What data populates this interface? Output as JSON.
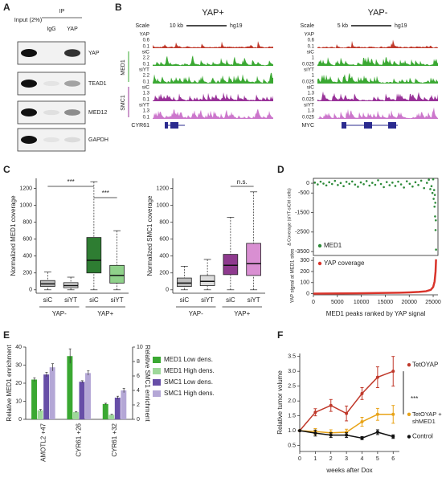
{
  "panel_labels": [
    "A",
    "B",
    "C",
    "D",
    "E",
    "F"
  ],
  "panel_a": {
    "lanes": [
      "Input (2%)",
      "IgG",
      "YAP"
    ],
    "ip_label": "IP",
    "rows": [
      "YAP",
      "TEAD1",
      "MED12",
      "GAPDH"
    ]
  },
  "panel_b": {
    "views": [
      {
        "title": "YAP+",
        "scale_label": "Scale",
        "scale": "10 kb",
        "genome": "hg19",
        "gene": "CYR61",
        "groups": [
          {
            "name": "MED1",
            "color": "#3aa832"
          },
          {
            "name": "SMC1",
            "color": "#993399"
          }
        ],
        "tracks": [
          {
            "name": "YAP",
            "max": 0.6,
            "min": 0.1,
            "color": "#c0392b"
          },
          {
            "name": "siC",
            "max": 2.2,
            "min": 0.1,
            "color": "#3aa832"
          },
          {
            "name": "siYT",
            "max": 2.2,
            "min": 0.1,
            "color": "#3aa832"
          },
          {
            "name": "siC",
            "max": 1.3,
            "min": 0.1,
            "color": "#993399"
          },
          {
            "name": "siYT",
            "max": 1.3,
            "min": 0.1,
            "color": "#cc77cc"
          }
        ]
      },
      {
        "title": "YAP-",
        "scale_label": "Scale",
        "scale": "5 kb",
        "genome": "hg19",
        "gene": "MYC",
        "tracks": [
          {
            "name": "YAP",
            "max": 0.6,
            "min": 0.1,
            "color": "#c0392b"
          },
          {
            "name": "siC",
            "max": 1,
            "min": 0.025,
            "color": "#3aa832"
          },
          {
            "name": "siYT",
            "max": 1,
            "min": 0.025,
            "color": "#3aa832"
          },
          {
            "name": "siC",
            "max": 1.3,
            "min": 0.025,
            "color": "#993399"
          },
          {
            "name": "siYT",
            "max": 1.3,
            "min": 0.025,
            "color": "#cc77cc"
          }
        ]
      }
    ]
  },
  "chart_data": [
    {
      "type": "box",
      "ylabel": "Normalized MED1 coverage",
      "categories": [
        "siC",
        "siYT",
        "siC",
        "siYT"
      ],
      "groups": [
        "YAP-",
        "YAP+"
      ],
      "boxes": [
        {
          "whislo": 0,
          "q1": 40,
          "med": 70,
          "q3": 110,
          "whishi": 210
        },
        {
          "whislo": 0,
          "q1": 25,
          "med": 50,
          "q3": 85,
          "whishi": 150
        },
        {
          "whislo": 0,
          "q1": 200,
          "med": 350,
          "q3": 620,
          "whishi": 1280
        },
        {
          "whislo": 0,
          "q1": 80,
          "med": 170,
          "q3": 290,
          "whishi": 700
        }
      ],
      "colors": [
        "#bdbdbd",
        "#d6d6d6",
        "#2e7d32",
        "#8fd18a"
      ],
      "ylim": [
        -40,
        1320
      ],
      "yticks": [
        0,
        200,
        400,
        600,
        800,
        1000,
        1200
      ],
      "annotations": [
        "***",
        "***"
      ]
    },
    {
      "type": "box",
      "ylabel": "Normalized SMC1 coverage",
      "categories": [
        "siC",
        "siYT",
        "siC",
        "siYT"
      ],
      "groups": [
        "YAP-",
        "YAP+"
      ],
      "boxes": [
        {
          "whislo": 0,
          "q1": 40,
          "med": 80,
          "q3": 140,
          "whishi": 280
        },
        {
          "whislo": 0,
          "q1": 50,
          "med": 100,
          "q3": 170,
          "whishi": 360
        },
        {
          "whislo": 0,
          "q1": 180,
          "med": 290,
          "q3": 420,
          "whishi": 860
        },
        {
          "whislo": 0,
          "q1": 170,
          "med": 310,
          "q3": 550,
          "whishi": 1160
        }
      ],
      "colors": [
        "#bdbdbd",
        "#dcdcdc",
        "#8e3a8e",
        "#d98fd2"
      ],
      "ylim": [
        -40,
        1320
      ],
      "yticks": [
        0,
        200,
        400,
        600,
        800,
        1000,
        1200
      ],
      "annotations": [
        "n.s."
      ]
    },
    {
      "type": "scatter",
      "ylabel": "Δ Coverage (siYT-siCtrl cells)",
      "legend": "lower left",
      "series": [
        {
          "name": "MED1",
          "color": "#2e8b3a",
          "x": [
            300,
            900,
            1500,
            2100,
            2700,
            3300,
            3900,
            4500,
            5100,
            5700,
            6300,
            6900,
            7500,
            8100,
            8700,
            9300,
            9900,
            10500,
            11100,
            11700,
            12300,
            12900,
            13500,
            14100,
            14700,
            15300,
            15900,
            16500,
            17100,
            17700,
            18300,
            18900,
            19500,
            20100,
            20700,
            21300,
            21900,
            22500,
            23100,
            23700,
            24100,
            24400,
            24650,
            24850,
            25000,
            25100,
            25200,
            25280,
            25350,
            25400,
            25450,
            25500,
            25550,
            25600
          ],
          "values": [
            30,
            -60,
            80,
            -20,
            -110,
            50,
            -40,
            120,
            -90,
            10,
            -150,
            70,
            -30,
            90,
            -70,
            -180,
            40,
            -50,
            110,
            -120,
            20,
            -80,
            150,
            -40,
            -200,
            60,
            -100,
            30,
            -140,
            80,
            -60,
            -220,
            100,
            -30,
            -170,
            50,
            -90,
            130,
            -250,
            20,
            180,
            -300,
            -150,
            -500,
            200,
            -800,
            -350,
            -1200,
            -600,
            -1700,
            -1000,
            -2400,
            -1900,
            -3400
          ]
        }
      ],
      "xlim": [
        0,
        26000
      ],
      "ylim": [
        -3700,
        250
      ],
      "yticks": [
        0,
        -500,
        -1500,
        -2500,
        -3500
      ]
    },
    {
      "type": "line",
      "ylabel": "YAP signal at MED1 sites",
      "xlabel": "MED1 peaks ranked by YAP signal",
      "legend": "upper left",
      "series": [
        {
          "name": "YAP coverage",
          "color": "#d9342b",
          "x": [
            0,
            3000,
            6000,
            9000,
            12000,
            15000,
            18000,
            20000,
            22000,
            23500,
            24500,
            25000,
            25300,
            25500,
            25600
          ],
          "values": [
            1,
            2,
            3,
            4,
            5,
            7,
            9,
            12,
            16,
            22,
            35,
            60,
            110,
            200,
            310
          ]
        }
      ],
      "xlim": [
        0,
        26000
      ],
      "ylim": [
        -10,
        330
      ],
      "xticks": [
        0,
        5000,
        10000,
        15000,
        20000,
        25000
      ],
      "yticks": [
        0,
        100,
        200,
        300
      ]
    },
    {
      "type": "bar",
      "ylabel": "Relative MED1 enrichment",
      "y2label": "Relative SMC1 enrichment",
      "legend": "right",
      "categories": [
        "AMOTL2 +47",
        "CYR61 +26",
        "CYR61 +32"
      ],
      "series": [
        {
          "name": "MED1 Low dens.",
          "color": "#3aa832",
          "values": [
            22,
            35,
            8.5
          ],
          "errors": [
            1,
            4,
            0.4
          ]
        },
        {
          "name": "MED1 High dens.",
          "color": "#9ed89a",
          "values": [
            5,
            4,
            2.5
          ],
          "errors": [
            0.5,
            0.3,
            0.3
          ]
        },
        {
          "name": "SMC1 Low dens.",
          "color": "#674ea7",
          "axis": "y2",
          "values": [
            6.2,
            5.2,
            3.0
          ],
          "errors": [
            0.3,
            0.15,
            0.2
          ]
        },
        {
          "name": "SMC1 High dens.",
          "color": "#b4a7d6",
          "axis": "y2",
          "values": [
            7.2,
            6.4,
            4.0
          ],
          "errors": [
            0.5,
            0.3,
            0.3
          ]
        }
      ],
      "ylim": [
        0,
        40
      ],
      "yticks": [
        0,
        10,
        20,
        30,
        40
      ],
      "y2lim": [
        0,
        10
      ],
      "y2ticks": [
        0,
        2,
        4,
        6,
        8,
        10
      ]
    },
    {
      "type": "line",
      "ylabel": "Relative tumor volume",
      "xlabel": "weeks after Dox",
      "legend": "right",
      "markers": true,
      "annotations": [
        "***"
      ],
      "x": [
        0,
        1,
        2,
        3,
        4,
        5,
        6
      ],
      "series": [
        {
          "name": "TetOYAP",
          "color": "#c0392b",
          "values": [
            1,
            1.62,
            1.85,
            1.58,
            2.25,
            2.8,
            3.0
          ],
          "errors": [
            0,
            0.12,
            0.2,
            0.25,
            0.2,
            0.35,
            0.5
          ]
        },
        {
          "name": "TetOYAP + shMED1",
          "color": "#e8a317",
          "values": [
            1,
            0.97,
            0.93,
            0.95,
            1.3,
            1.55,
            1.55
          ],
          "errors": [
            0,
            0.1,
            0.1,
            0.1,
            0.15,
            0.2,
            0.3
          ]
        },
        {
          "name": "Control",
          "color": "#111111",
          "values": [
            1,
            0.92,
            0.85,
            0.85,
            0.75,
            0.95,
            0.8
          ],
          "errors": [
            0,
            0.1,
            0.08,
            0.08,
            0.05,
            0.08,
            0.06
          ]
        }
      ],
      "xlim": [
        0,
        6.4
      ],
      "ylim": [
        0.3,
        3.6
      ],
      "xticks": [
        0,
        1,
        2,
        3,
        4,
        5,
        6
      ],
      "yticks": [
        0.5,
        {
          "value": 1,
          "label": "1.0"
        },
        1.5,
        {
          "value": 2,
          "label": "2.0"
        },
        2.5,
        {
          "value": 3,
          "label": "3.0"
        },
        3.5
      ]
    }
  ]
}
